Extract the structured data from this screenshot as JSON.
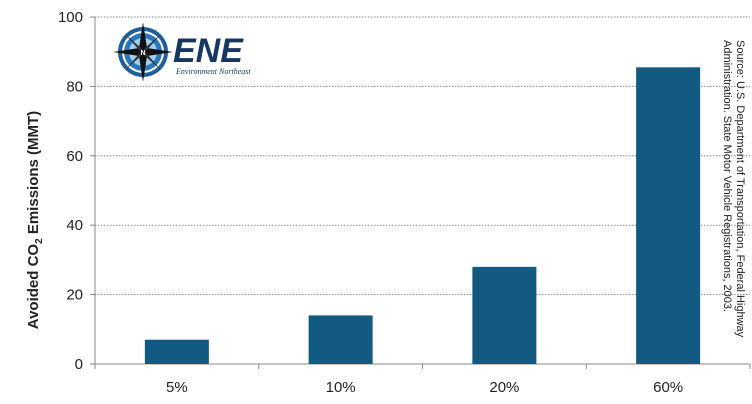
{
  "chart_data": {
    "type": "bar",
    "categories": [
      "5%",
      "10%",
      "20%",
      "60%"
    ],
    "values": [
      7,
      14,
      28,
      85.5
    ],
    "ylabel_main": "Avoided CO",
    "ylabel_sub": "2",
    "ylabel_rest": " Emissions (MMT)",
    "ylim": [
      0,
      100
    ],
    "yticks": [
      0,
      20,
      40,
      60,
      80,
      100
    ],
    "grid": true,
    "bar_color": "#135a82",
    "source_line1": "Source: U.S. Department of Transportation, Federal Highway",
    "source_line2": "Administration. State Motor Vehicle Registrations, 2003."
  },
  "logo": {
    "name": "ENE",
    "subtitle": "Environment Northeast",
    "compass_letter": "N"
  }
}
